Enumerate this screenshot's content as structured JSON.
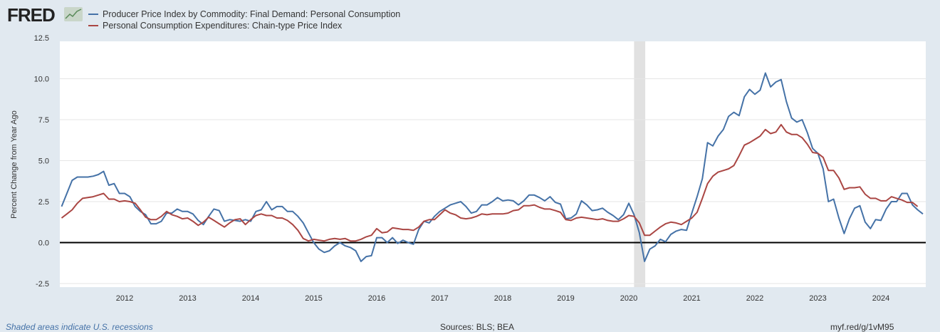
{
  "header": {
    "logo": "FRED",
    "logo_icon": "chart-line-icon"
  },
  "footer": {
    "recession_note": "Shaded areas indicate U.S. recessions",
    "sources": "Sources: BLS; BEA",
    "short_url": "myf.red/g/1vM95"
  },
  "chart_data": {
    "type": "line",
    "title": "",
    "ylabel": "Percent Change from Year Ago",
    "xlabel": "",
    "ylim": [
      -2.5,
      12.5
    ],
    "yticks": [
      "12.5",
      "10.0",
      "7.5",
      "5.0",
      "2.5",
      "0.0",
      "-2.5"
    ],
    "xticks": [
      "2012",
      "2013",
      "2014",
      "2015",
      "2016",
      "2017",
      "2018",
      "2019",
      "2020",
      "2021",
      "2022",
      "2023",
      "2024"
    ],
    "x_start": "2011-01",
    "grid": true,
    "legend": "top-left",
    "recessions": [
      {
        "start": "2020-02",
        "end": "2020-04"
      }
    ],
    "series": [
      {
        "name": "Producer Price Index by Commodity: Final Demand: Personal Consumption",
        "color": "#4572a7",
        "values": [
          2.2,
          3.0,
          3.8,
          4.0,
          4.0,
          4.0,
          4.05,
          4.15,
          4.35,
          3.5,
          3.6,
          3.0,
          3.0,
          2.8,
          2.2,
          1.9,
          1.7,
          1.15,
          1.15,
          1.3,
          1.8,
          1.8,
          2.05,
          1.9,
          1.9,
          1.75,
          1.35,
          1.1,
          1.6,
          2.05,
          1.95,
          1.3,
          1.4,
          1.35,
          1.3,
          1.4,
          1.3,
          1.9,
          2.0,
          2.5,
          2.0,
          2.2,
          2.2,
          1.9,
          1.9,
          1.6,
          1.2,
          0.6,
          0.0,
          -0.4,
          -0.6,
          -0.5,
          -0.2,
          0.0,
          -0.2,
          -0.3,
          -0.5,
          -1.15,
          -0.85,
          -0.8,
          0.3,
          0.3,
          0.0,
          0.3,
          -0.05,
          0.15,
          0.0,
          -0.1,
          0.8,
          1.3,
          1.2,
          1.6,
          1.9,
          2.1,
          2.3,
          2.4,
          2.5,
          2.2,
          1.8,
          1.9,
          2.3,
          2.3,
          2.5,
          2.75,
          2.55,
          2.6,
          2.55,
          2.3,
          2.55,
          2.9,
          2.9,
          2.75,
          2.55,
          2.8,
          2.45,
          2.35,
          1.45,
          1.5,
          1.75,
          2.55,
          2.3,
          1.95,
          2.0,
          2.1,
          1.85,
          1.65,
          1.4,
          1.7,
          2.4,
          1.7,
          0.6,
          -1.15,
          -0.4,
          -0.2,
          0.2,
          0.05,
          0.5,
          0.7,
          0.8,
          0.75,
          1.8,
          2.8,
          3.9,
          6.1,
          5.9,
          6.5,
          6.9,
          7.7,
          7.95,
          7.75,
          8.9,
          9.35,
          9.05,
          9.3,
          10.35,
          9.5,
          9.8,
          9.95,
          8.6,
          7.6,
          7.35,
          7.5,
          6.7,
          5.75,
          5.45,
          4.5,
          2.5,
          2.65,
          1.5,
          0.55,
          1.45,
          2.1,
          2.25,
          1.25,
          0.85,
          1.4,
          1.35,
          2.05,
          2.5,
          2.5,
          3.0,
          3.0,
          2.3,
          2.0,
          1.75
        ]
      },
      {
        "name": "Personal Consumption Expenditures: Chain-type Price Index",
        "color": "#aa4643",
        "values": [
          1.5,
          1.75,
          2.0,
          2.4,
          2.7,
          2.75,
          2.8,
          2.9,
          3.0,
          2.65,
          2.65,
          2.5,
          2.55,
          2.5,
          2.4,
          2.0,
          1.55,
          1.4,
          1.4,
          1.6,
          1.9,
          1.7,
          1.6,
          1.45,
          1.5,
          1.3,
          1.05,
          1.25,
          1.55,
          1.35,
          1.15,
          0.95,
          1.2,
          1.4,
          1.45,
          1.1,
          1.4,
          1.65,
          1.75,
          1.65,
          1.65,
          1.5,
          1.5,
          1.35,
          1.1,
          0.75,
          0.25,
          0.1,
          0.2,
          0.15,
          0.1,
          0.2,
          0.25,
          0.2,
          0.25,
          0.1,
          0.1,
          0.2,
          0.35,
          0.45,
          0.85,
          0.6,
          0.65,
          0.9,
          0.85,
          0.8,
          0.8,
          0.75,
          0.95,
          1.3,
          1.4,
          1.4,
          1.7,
          2.0,
          1.8,
          1.7,
          1.5,
          1.45,
          1.5,
          1.6,
          1.75,
          1.7,
          1.75,
          1.75,
          1.75,
          1.8,
          1.95,
          2.0,
          2.25,
          2.25,
          2.3,
          2.15,
          2.05,
          2.05,
          1.95,
          1.85,
          1.4,
          1.35,
          1.5,
          1.55,
          1.5,
          1.45,
          1.4,
          1.45,
          1.35,
          1.3,
          1.3,
          1.45,
          1.65,
          1.6,
          1.2,
          0.45,
          0.45,
          0.7,
          0.95,
          1.15,
          1.25,
          1.2,
          1.1,
          1.3,
          1.5,
          1.85,
          2.7,
          3.6,
          4.05,
          4.3,
          4.4,
          4.5,
          4.7,
          5.3,
          5.95,
          6.1,
          6.3,
          6.5,
          6.9,
          6.65,
          6.75,
          7.2,
          6.75,
          6.6,
          6.6,
          6.4,
          6.0,
          5.5,
          5.45,
          5.2,
          4.4,
          4.4,
          3.95,
          3.25,
          3.35,
          3.35,
          3.4,
          2.95,
          2.7,
          2.7,
          2.55,
          2.55,
          2.8,
          2.7,
          2.6,
          2.45,
          2.45,
          2.2
        ]
      }
    ]
  }
}
